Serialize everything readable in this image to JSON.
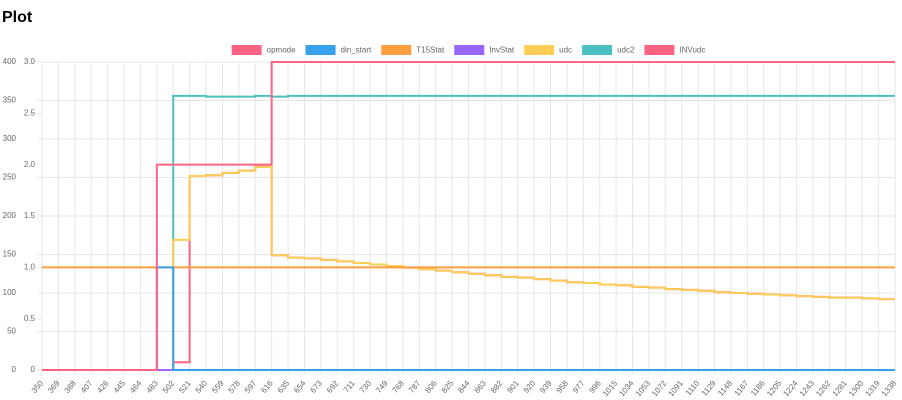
{
  "chart_data": {
    "type": "line",
    "title": "Plot",
    "stepped": true,
    "grid": true,
    "categories": [
      "350",
      "369",
      "388",
      "407",
      "426",
      "445",
      "464",
      "483",
      "502",
      "521",
      "540",
      "559",
      "578",
      "597",
      "616",
      "635",
      "654",
      "673",
      "692",
      "711",
      "730",
      "749",
      "768",
      "787",
      "806",
      "825",
      "844",
      "863",
      "882",
      "901",
      "920",
      "939",
      "958",
      "977",
      "996",
      "1015",
      "1034",
      "1053",
      "1072",
      "1091",
      "1110",
      "1129",
      "1148",
      "1167",
      "1186",
      "1205",
      "1224",
      "1243",
      "1262",
      "1281",
      "1300",
      "1319",
      "1338"
    ],
    "ylim": [
      0,
      400
    ],
    "yticks": [
      0,
      50,
      100,
      150,
      200,
      250,
      300,
      350,
      400
    ],
    "y2lim": [
      0,
      3
    ],
    "y2ticks": [
      0,
      0.5,
      {
        "value": 1,
        "label": "1.0"
      },
      1.5,
      {
        "value": 2,
        "label": "2.0"
      },
      2.5,
      {
        "value": 3,
        "label": "3.0"
      }
    ],
    "series": [
      {
        "name": "opmode",
        "color": "#ff6384",
        "axis": "y2",
        "values": [
          0,
          0,
          0,
          0,
          0,
          0,
          0,
          2,
          2,
          2,
          2,
          2,
          2,
          2,
          3,
          3,
          3,
          3,
          3,
          3,
          3,
          3,
          3,
          3,
          3,
          3,
          3,
          3,
          3,
          3,
          3,
          3,
          3,
          3,
          3,
          3,
          3,
          3,
          3,
          3,
          3,
          3,
          3,
          3,
          3,
          3,
          3,
          3,
          3,
          3,
          3,
          3,
          3
        ]
      },
      {
        "name": "din_start",
        "color": "#36a2eb",
        "axis": "y2",
        "values": [
          0,
          0,
          0,
          0,
          0,
          0,
          0,
          1,
          0,
          0,
          0,
          0,
          0,
          0,
          0,
          0,
          0,
          0,
          0,
          0,
          0,
          0,
          0,
          0,
          0,
          0,
          0,
          0,
          0,
          0,
          0,
          0,
          0,
          0,
          0,
          0,
          0,
          0,
          0,
          0,
          0,
          0,
          0,
          0,
          0,
          0,
          0,
          0,
          0,
          0,
          0,
          0,
          0
        ]
      },
      {
        "name": "T15Stat",
        "color": "#ff9f40",
        "axis": "y2",
        "values": [
          1,
          1,
          1,
          1,
          1,
          1,
          1,
          1,
          1,
          1,
          1,
          1,
          1,
          1,
          1,
          1,
          1,
          1,
          1,
          1,
          1,
          1,
          1,
          1,
          1,
          1,
          1,
          1,
          1,
          1,
          1,
          1,
          1,
          1,
          1,
          1,
          1,
          1,
          1,
          1,
          1,
          1,
          1,
          1,
          1,
          1,
          1,
          1,
          1,
          1,
          1,
          1,
          1
        ]
      },
      {
        "name": "InvStat",
        "color": "#9966ff",
        "axis": "y2",
        "values": [
          0,
          0,
          0,
          0,
          0,
          0,
          0,
          0,
          0,
          0,
          0,
          0,
          0,
          0,
          0,
          0,
          0,
          0,
          0,
          0,
          0,
          0,
          0,
          0,
          0,
          0,
          0,
          0,
          0,
          0,
          0,
          0,
          0,
          0,
          0,
          0,
          0,
          0,
          0,
          0,
          0,
          0,
          0,
          0,
          0,
          0,
          0,
          0,
          0,
          0,
          0,
          0,
          0
        ]
      },
      {
        "name": "udc",
        "color": "#ffcd56",
        "values": [
          0,
          0,
          0,
          0,
          0,
          0,
          0,
          0,
          169,
          252,
          253,
          256,
          259,
          264,
          149,
          146,
          145,
          143,
          141,
          139,
          137,
          135,
          133,
          131,
          129,
          127,
          125,
          123,
          121,
          120,
          118,
          116,
          114,
          113,
          111,
          110,
          108,
          107,
          105,
          104,
          103,
          101,
          100,
          99,
          98,
          97,
          96,
          95,
          94,
          94,
          93,
          92,
          92
        ]
      },
      {
        "name": "udc2",
        "color": "#4bc0c0",
        "values": [
          0,
          0,
          0,
          0,
          0,
          0,
          0,
          0,
          356,
          356,
          355,
          355,
          355,
          356,
          355,
          356,
          356,
          356,
          356,
          356,
          356,
          356,
          356,
          356,
          356,
          356,
          356,
          356,
          356,
          356,
          356,
          356,
          356,
          356,
          356,
          356,
          356,
          356,
          356,
          356,
          356,
          356,
          356,
          356,
          356,
          356,
          356,
          356,
          356,
          356,
          356,
          356,
          356
        ]
      },
      {
        "name": "INVudc",
        "color": "#ff6384",
        "values": [
          0,
          0,
          0,
          0,
          0,
          0,
          0,
          0,
          10,
          252,
          253,
          256,
          259,
          264,
          149,
          146,
          145,
          143,
          141,
          139,
          137,
          135,
          133,
          131,
          129,
          127,
          125,
          123,
          121,
          120,
          118,
          116,
          114,
          113,
          111,
          110,
          108,
          107,
          105,
          104,
          103,
          101,
          100,
          99,
          98,
          97,
          96,
          95,
          94,
          94,
          93,
          92,
          92
        ]
      }
    ]
  }
}
